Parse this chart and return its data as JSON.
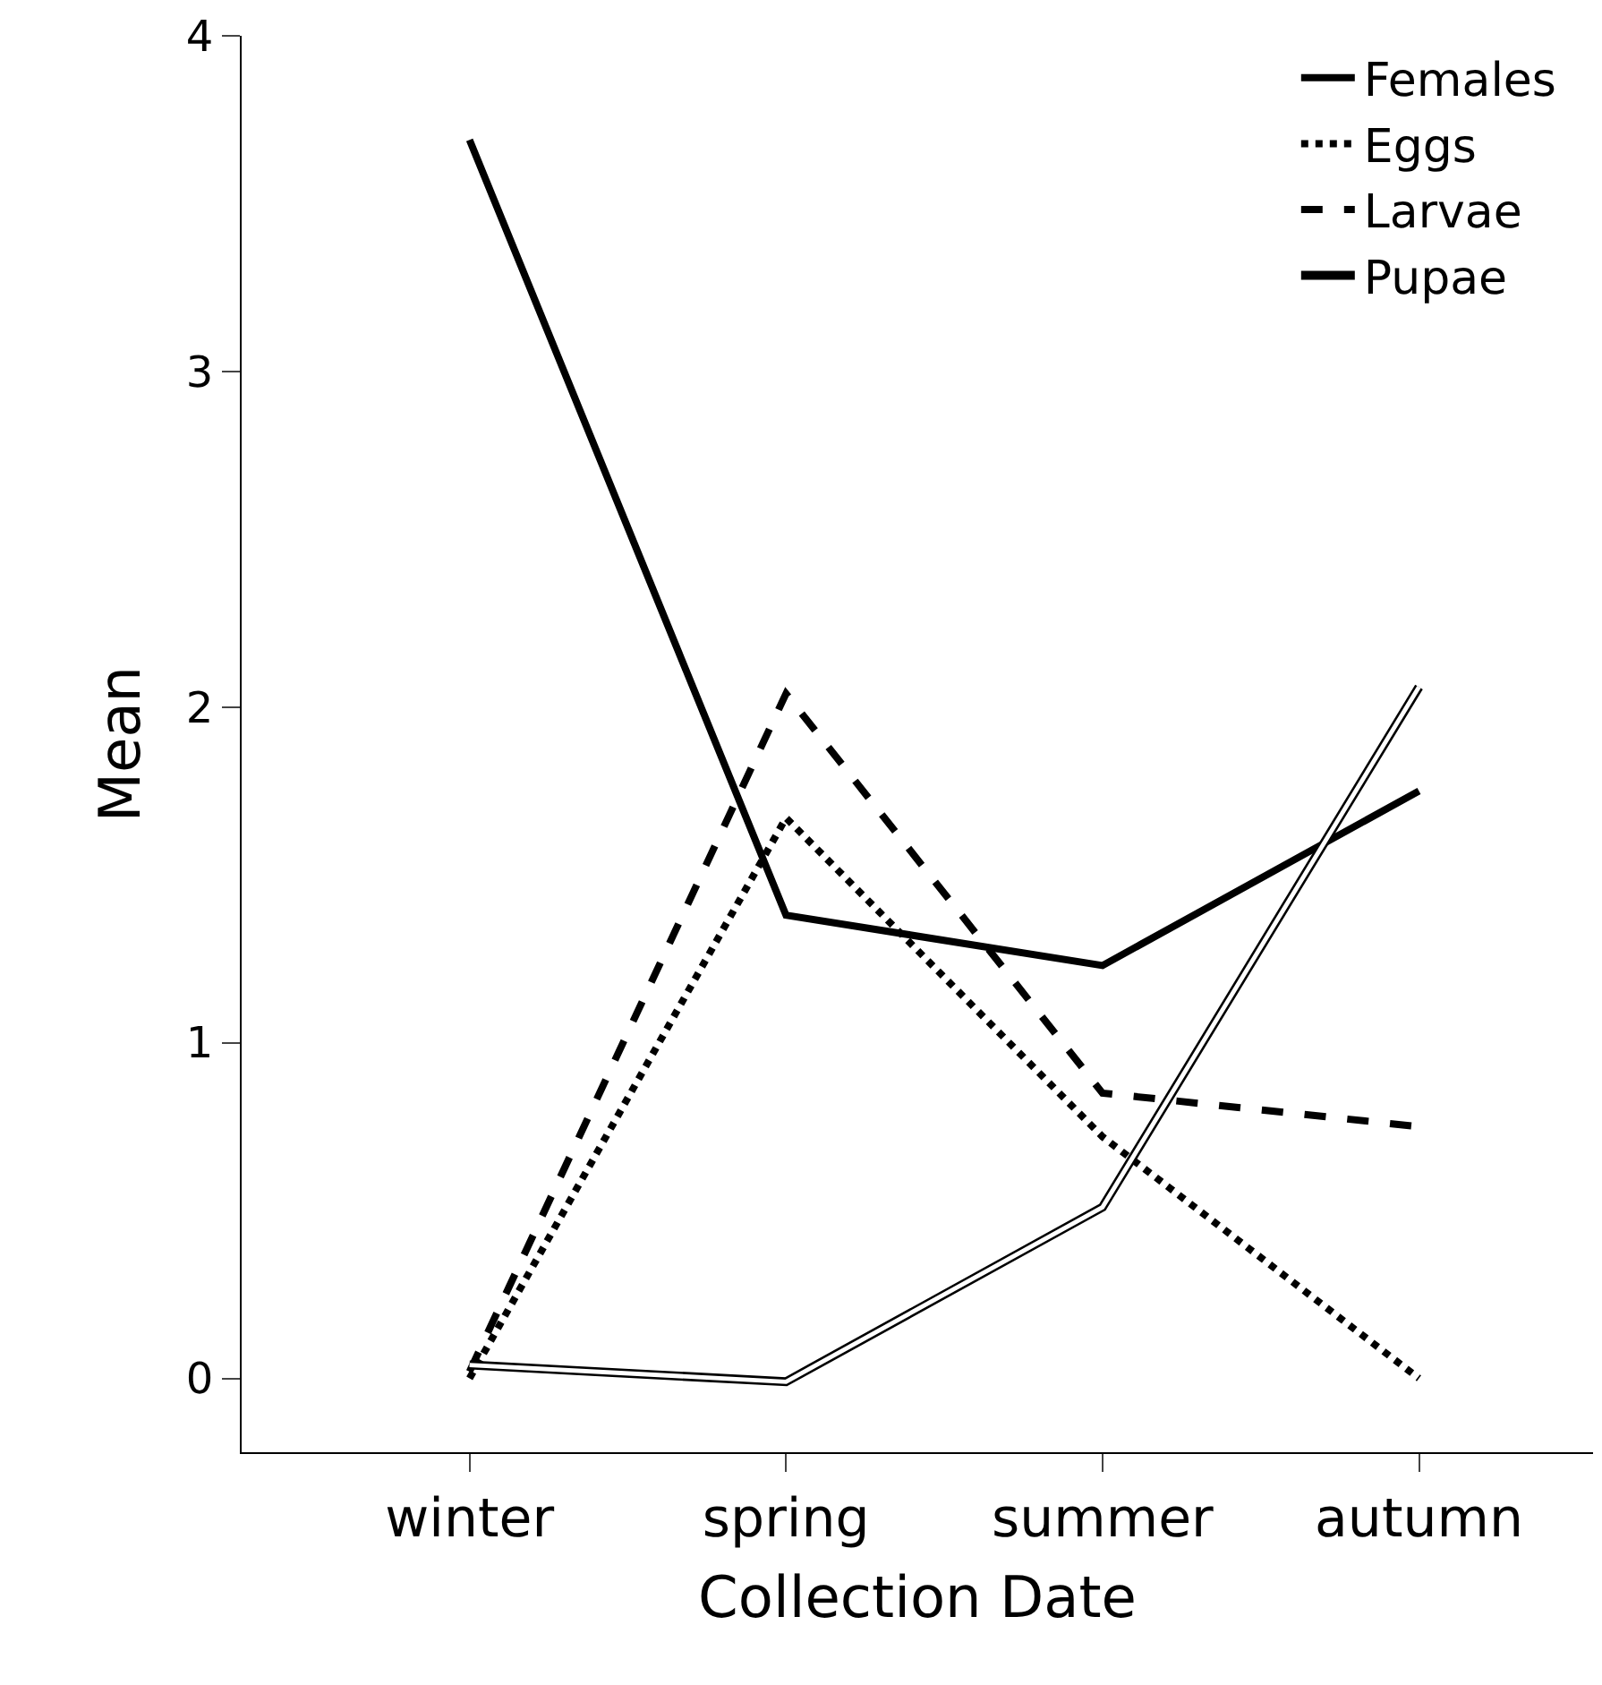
{
  "chart_data": {
    "type": "line",
    "xlabel": "Collection Date",
    "ylabel": "Mean",
    "categories": [
      "winter",
      "spring",
      "summer",
      "autumn"
    ],
    "series": [
      {
        "name": "Females",
        "color": "#000000",
        "values": [
          3.69,
          1.38,
          1.23,
          1.75
        ],
        "line_style": "solid"
      },
      {
        "name": "Eggs",
        "color": "#000000",
        "values": [
          0.0,
          1.67,
          0.72,
          0.0
        ],
        "line_style": "dotted"
      },
      {
        "name": "Larvae",
        "color": "#000000",
        "values": [
          0.02,
          2.04,
          0.85,
          0.75
        ],
        "line_style": "dashed"
      },
      {
        "name": "Pupae",
        "color": "#000000",
        "values": [
          0.04,
          -0.01,
          0.51,
          2.06
        ]
      }
    ],
    "ylim": [
      -0.22,
      4
    ],
    "yticks": [
      0,
      1,
      2,
      3,
      4
    ],
    "grid": false,
    "legend": "top right",
    "marker": "none"
  }
}
